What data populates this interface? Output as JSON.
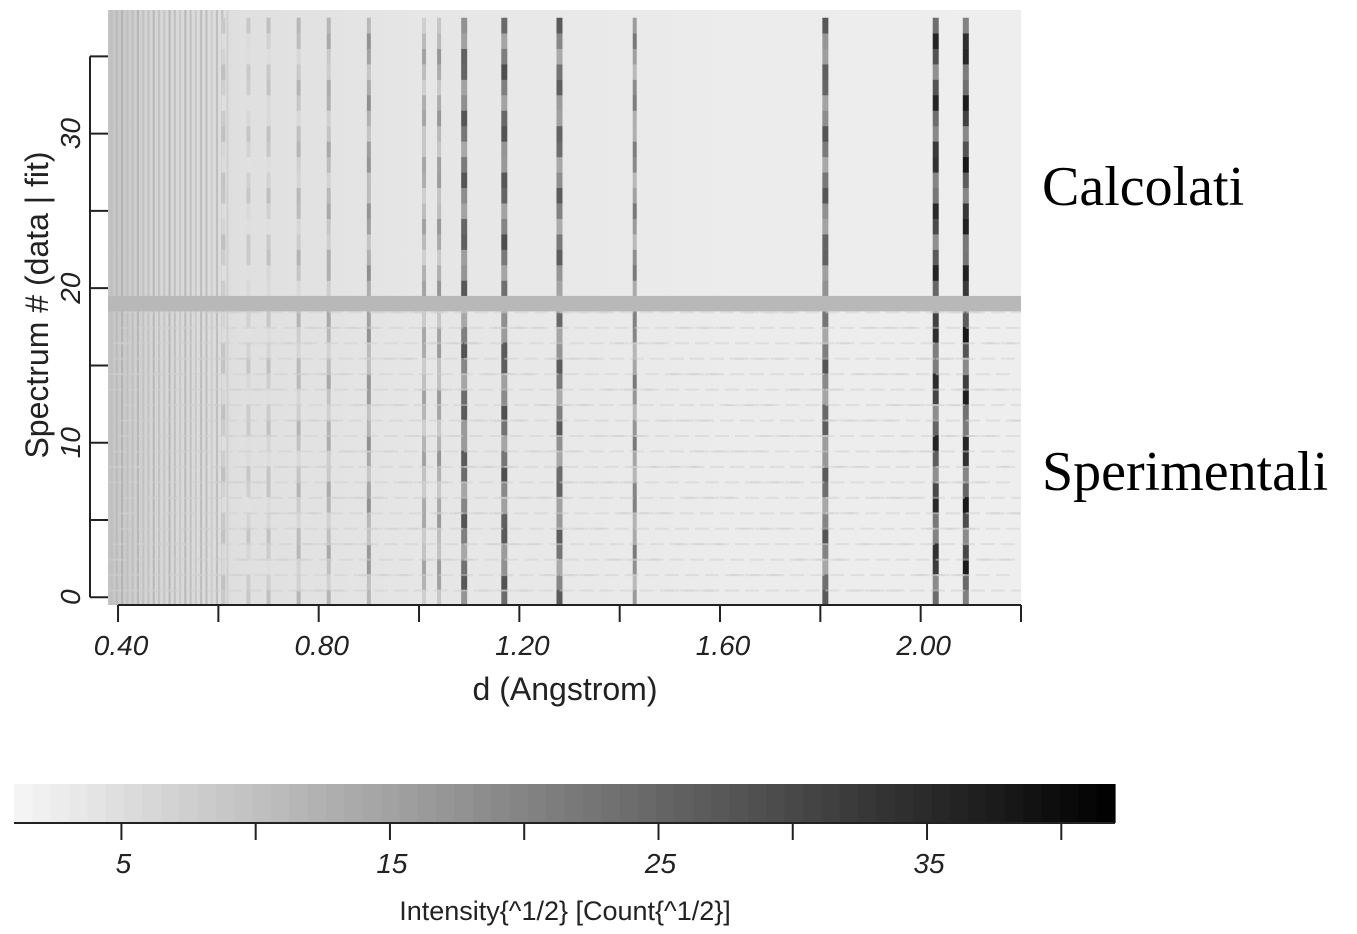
{
  "chart_data": {
    "type": "heatmap",
    "xlabel": "d (Angstrom)",
    "ylabel": "Spectrum # (data | fit)",
    "xlim": [
      0.38,
      2.2
    ],
    "ylim": [
      -0.5,
      38
    ],
    "x_ticks": [
      0.4,
      0.8,
      1.2,
      1.6,
      2.0
    ],
    "x_tick_labels": [
      "0.40",
      "0.80",
      "1.20",
      "1.60",
      "2.00"
    ],
    "y_ticks": [
      0,
      10,
      20,
      30
    ],
    "y_tick_labels": [
      "0",
      "10",
      "20",
      "30"
    ],
    "n_spectra": 38,
    "separator_row": 19,
    "peaks": [
      {
        "d": 0.61,
        "intensity": 10
      },
      {
        "d": 0.66,
        "intensity": 9
      },
      {
        "d": 0.7,
        "intensity": 10
      },
      {
        "d": 0.76,
        "intensity": 12
      },
      {
        "d": 0.82,
        "intensity": 14
      },
      {
        "d": 0.9,
        "intensity": 18
      },
      {
        "d": 1.01,
        "intensity": 15
      },
      {
        "d": 1.04,
        "intensity": 17
      },
      {
        "d": 1.09,
        "intensity": 28
      },
      {
        "d": 1.17,
        "intensity": 29
      },
      {
        "d": 1.28,
        "intensity": 27
      },
      {
        "d": 1.43,
        "intensity": 22
      },
      {
        "d": 1.81,
        "intensity": 28
      },
      {
        "d": 2.03,
        "intensity": 36
      },
      {
        "d": 2.09,
        "intensity": 38
      }
    ],
    "colorbar": {
      "label": "Intensity{^1/2} [Count{^1/2}]",
      "range": [
        1,
        42
      ],
      "ticks": [
        5,
        10,
        15,
        20,
        25,
        30,
        35,
        40
      ],
      "tick_labels": [
        "5",
        "15",
        "25",
        "35"
      ],
      "colormap": "white-to-black"
    },
    "annotations": [
      {
        "text": "Calcolati",
        "applies_to": "spectra 19-38 (fit)"
      },
      {
        "text": "Sperimentali",
        "applies_to": "spectra 0-18 (data)"
      }
    ]
  }
}
